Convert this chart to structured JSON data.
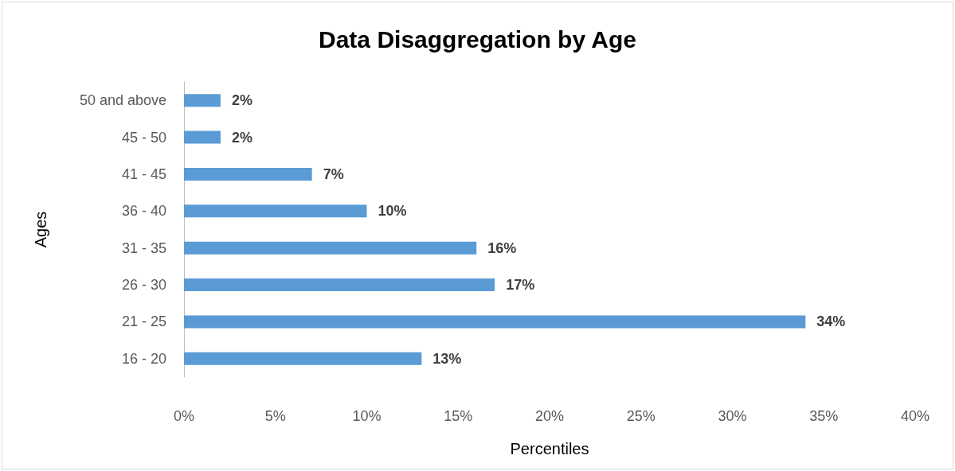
{
  "chart_data": {
    "type": "bar",
    "orientation": "horizontal",
    "title": "Data Disaggregation by Age",
    "xlabel": "Percentiles",
    "ylabel": "Ages",
    "categories": [
      "50 and above",
      "45 - 50",
      "41 - 45",
      "36 - 40",
      "31 - 35",
      "26 - 30",
      "21 - 25",
      "16 - 20"
    ],
    "values": [
      2,
      2,
      7,
      10,
      16,
      17,
      34,
      13
    ],
    "value_labels": [
      "2%",
      "2%",
      "7%",
      "10%",
      "16%",
      "17%",
      "34%",
      "13%"
    ],
    "color": "#5b9bd5",
    "xlim": [
      0,
      40
    ],
    "xticks": [
      {
        "value": 0,
        "label": "0%"
      },
      {
        "value": 5,
        "label": "5%"
      },
      {
        "value": 10,
        "label": "10%"
      },
      {
        "value": 15,
        "label": "15%"
      },
      {
        "value": 20,
        "label": "20%"
      },
      {
        "value": 25,
        "label": "25%"
      },
      {
        "value": 30,
        "label": "30%"
      },
      {
        "value": 35,
        "label": "35%"
      },
      {
        "value": 40,
        "label": "40%"
      }
    ],
    "grid": false
  }
}
